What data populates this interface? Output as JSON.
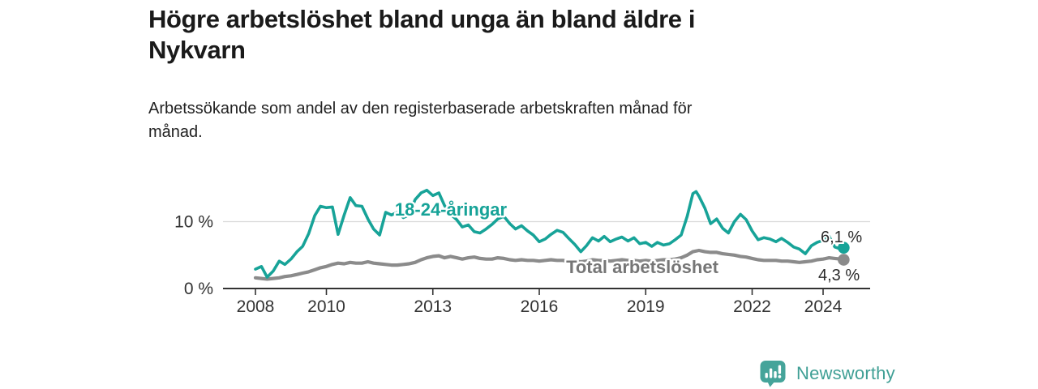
{
  "header": {
    "title_lines": [
      "Högre arbetslöshet bland unga än bland äldre i",
      "Nykvarn"
    ],
    "subtitle_lines": [
      "Arbetssökande som andel av den registerbaserade arbetskraften månad för",
      "månad."
    ]
  },
  "branding": {
    "logo_text": "Newsworthy",
    "logo_icon": "bar-chart-speech-bubble-icon",
    "logo_color": "#3f9f95"
  },
  "chart_data": {
    "type": "line",
    "unit": "%",
    "grid": "horizontal line at 10% only",
    "legend_position": "inline labels on lines",
    "xlim": [
      2007.1,
      2025.3
    ],
    "ylim": [
      0,
      16.5
    ],
    "x_ticks": [
      {
        "v": 2008,
        "label": "2008"
      },
      {
        "v": 2010,
        "label": "2010"
      },
      {
        "v": 2013,
        "label": "2013"
      },
      {
        "v": 2016,
        "label": "2016"
      },
      {
        "v": 2019,
        "label": "2019"
      },
      {
        "v": 2022,
        "label": "2022"
      },
      {
        "v": 2024,
        "label": "2024"
      }
    ],
    "y_ticks": [
      {
        "v": 0,
        "label": "0 %"
      },
      {
        "v": 10,
        "label": "10 %"
      }
    ],
    "series": [
      {
        "name": "18-24-åringar",
        "color": "#17a398",
        "end_label": "6,1 %",
        "end_value": 6.1,
        "points": [
          [
            2008.0,
            2.9
          ],
          [
            2008.17,
            3.3
          ],
          [
            2008.33,
            1.7
          ],
          [
            2008.5,
            2.6
          ],
          [
            2008.67,
            4.1
          ],
          [
            2008.83,
            3.6
          ],
          [
            2009.0,
            4.4
          ],
          [
            2009.17,
            5.5
          ],
          [
            2009.33,
            6.3
          ],
          [
            2009.5,
            8.2
          ],
          [
            2009.67,
            10.9
          ],
          [
            2009.83,
            12.3
          ],
          [
            2010.0,
            12.1
          ],
          [
            2010.17,
            12.2
          ],
          [
            2010.33,
            8.1
          ],
          [
            2010.5,
            11.0
          ],
          [
            2010.67,
            13.6
          ],
          [
            2010.83,
            12.4
          ],
          [
            2011.0,
            12.3
          ],
          [
            2011.17,
            10.4
          ],
          [
            2011.33,
            8.9
          ],
          [
            2011.5,
            8.0
          ],
          [
            2011.67,
            11.4
          ],
          [
            2011.83,
            11.0
          ],
          [
            2012.0,
            11.4
          ],
          [
            2012.17,
            10.6
          ],
          [
            2012.33,
            11.0
          ],
          [
            2012.5,
            13.3
          ],
          [
            2012.67,
            14.3
          ],
          [
            2012.83,
            14.7
          ],
          [
            2013.0,
            13.9
          ],
          [
            2013.17,
            14.3
          ],
          [
            2013.33,
            12.4
          ],
          [
            2013.5,
            11.1
          ],
          [
            2013.67,
            10.3
          ],
          [
            2013.83,
            9.2
          ],
          [
            2014.0,
            9.5
          ],
          [
            2014.17,
            8.5
          ],
          [
            2014.33,
            8.3
          ],
          [
            2014.5,
            8.9
          ],
          [
            2014.67,
            9.6
          ],
          [
            2014.83,
            10.4
          ],
          [
            2015.0,
            10.8
          ],
          [
            2015.17,
            9.7
          ],
          [
            2015.33,
            8.9
          ],
          [
            2015.5,
            9.4
          ],
          [
            2015.67,
            8.6
          ],
          [
            2015.83,
            8.0
          ],
          [
            2016.0,
            7.0
          ],
          [
            2016.17,
            7.4
          ],
          [
            2016.33,
            8.1
          ],
          [
            2016.5,
            8.7
          ],
          [
            2016.67,
            8.4
          ],
          [
            2016.83,
            7.5
          ],
          [
            2017.0,
            6.6
          ],
          [
            2017.17,
            5.5
          ],
          [
            2017.33,
            6.4
          ],
          [
            2017.5,
            7.6
          ],
          [
            2017.67,
            7.1
          ],
          [
            2017.83,
            7.8
          ],
          [
            2018.0,
            7.0
          ],
          [
            2018.17,
            7.4
          ],
          [
            2018.33,
            7.7
          ],
          [
            2018.5,
            7.1
          ],
          [
            2018.67,
            7.6
          ],
          [
            2018.83,
            6.7
          ],
          [
            2019.0,
            6.9
          ],
          [
            2019.17,
            6.3
          ],
          [
            2019.33,
            6.9
          ],
          [
            2019.5,
            6.5
          ],
          [
            2019.67,
            6.7
          ],
          [
            2019.83,
            7.3
          ],
          [
            2020.0,
            8.0
          ],
          [
            2020.17,
            10.8
          ],
          [
            2020.33,
            14.2
          ],
          [
            2020.42,
            14.5
          ],
          [
            2020.5,
            13.8
          ],
          [
            2020.67,
            12.0
          ],
          [
            2020.83,
            9.7
          ],
          [
            2021.0,
            10.4
          ],
          [
            2021.17,
            9.0
          ],
          [
            2021.33,
            8.3
          ],
          [
            2021.5,
            10.0
          ],
          [
            2021.67,
            11.1
          ],
          [
            2021.83,
            10.3
          ],
          [
            2022.0,
            8.6
          ],
          [
            2022.17,
            7.3
          ],
          [
            2022.33,
            7.6
          ],
          [
            2022.5,
            7.4
          ],
          [
            2022.67,
            7.0
          ],
          [
            2022.83,
            7.5
          ],
          [
            2023.0,
            6.9
          ],
          [
            2023.17,
            6.2
          ],
          [
            2023.33,
            5.9
          ],
          [
            2023.5,
            5.2
          ],
          [
            2023.67,
            6.4
          ],
          [
            2023.83,
            6.9
          ],
          [
            2024.0,
            7.2
          ],
          [
            2024.17,
            7.8
          ],
          [
            2024.33,
            6.2
          ],
          [
            2024.5,
            5.9
          ],
          [
            2024.58,
            6.1
          ]
        ]
      },
      {
        "name": "Total arbetslöshet",
        "color": "#8b8b8b",
        "label_color": "#767676",
        "end_label": "4,3 %",
        "end_value": 4.3,
        "points": [
          [
            2008.0,
            1.6
          ],
          [
            2008.17,
            1.5
          ],
          [
            2008.33,
            1.4
          ],
          [
            2008.5,
            1.5
          ],
          [
            2008.67,
            1.6
          ],
          [
            2008.83,
            1.8
          ],
          [
            2009.0,
            1.9
          ],
          [
            2009.17,
            2.1
          ],
          [
            2009.33,
            2.3
          ],
          [
            2009.5,
            2.5
          ],
          [
            2009.67,
            2.8
          ],
          [
            2009.83,
            3.1
          ],
          [
            2010.0,
            3.3
          ],
          [
            2010.17,
            3.6
          ],
          [
            2010.33,
            3.8
          ],
          [
            2010.5,
            3.7
          ],
          [
            2010.67,
            3.9
          ],
          [
            2010.83,
            3.8
          ],
          [
            2011.0,
            3.8
          ],
          [
            2011.17,
            4.0
          ],
          [
            2011.33,
            3.8
          ],
          [
            2011.5,
            3.7
          ],
          [
            2011.67,
            3.6
          ],
          [
            2011.83,
            3.5
          ],
          [
            2012.0,
            3.5
          ],
          [
            2012.17,
            3.6
          ],
          [
            2012.33,
            3.7
          ],
          [
            2012.5,
            3.9
          ],
          [
            2012.67,
            4.3
          ],
          [
            2012.83,
            4.6
          ],
          [
            2013.0,
            4.8
          ],
          [
            2013.17,
            4.9
          ],
          [
            2013.33,
            4.6
          ],
          [
            2013.5,
            4.8
          ],
          [
            2013.67,
            4.6
          ],
          [
            2013.83,
            4.4
          ],
          [
            2014.0,
            4.6
          ],
          [
            2014.17,
            4.7
          ],
          [
            2014.33,
            4.5
          ],
          [
            2014.5,
            4.4
          ],
          [
            2014.67,
            4.4
          ],
          [
            2014.83,
            4.6
          ],
          [
            2015.0,
            4.5
          ],
          [
            2015.17,
            4.3
          ],
          [
            2015.33,
            4.2
          ],
          [
            2015.5,
            4.3
          ],
          [
            2015.67,
            4.2
          ],
          [
            2015.83,
            4.2
          ],
          [
            2016.0,
            4.1
          ],
          [
            2016.17,
            4.2
          ],
          [
            2016.33,
            4.3
          ],
          [
            2016.5,
            4.2
          ],
          [
            2016.67,
            4.2
          ],
          [
            2016.83,
            4.0
          ],
          [
            2017.0,
            4.1
          ],
          [
            2017.17,
            4.0
          ],
          [
            2017.33,
            4.1
          ],
          [
            2017.5,
            4.3
          ],
          [
            2017.67,
            4.2
          ],
          [
            2017.83,
            4.2
          ],
          [
            2018.0,
            4.1
          ],
          [
            2018.17,
            4.2
          ],
          [
            2018.33,
            4.3
          ],
          [
            2018.5,
            4.2
          ],
          [
            2018.67,
            4.2
          ],
          [
            2018.83,
            4.1
          ],
          [
            2019.0,
            4.2
          ],
          [
            2019.17,
            4.1
          ],
          [
            2019.33,
            4.2
          ],
          [
            2019.5,
            4.3
          ],
          [
            2019.67,
            4.3
          ],
          [
            2019.83,
            4.4
          ],
          [
            2020.0,
            4.6
          ],
          [
            2020.17,
            5.0
          ],
          [
            2020.33,
            5.5
          ],
          [
            2020.5,
            5.7
          ],
          [
            2020.67,
            5.5
          ],
          [
            2020.83,
            5.4
          ],
          [
            2021.0,
            5.4
          ],
          [
            2021.17,
            5.2
          ],
          [
            2021.33,
            5.1
          ],
          [
            2021.5,
            5.0
          ],
          [
            2021.67,
            4.8
          ],
          [
            2021.83,
            4.7
          ],
          [
            2022.0,
            4.5
          ],
          [
            2022.17,
            4.3
          ],
          [
            2022.33,
            4.2
          ],
          [
            2022.5,
            4.2
          ],
          [
            2022.67,
            4.2
          ],
          [
            2022.83,
            4.1
          ],
          [
            2023.0,
            4.1
          ],
          [
            2023.17,
            4.0
          ],
          [
            2023.33,
            3.9
          ],
          [
            2023.5,
            4.0
          ],
          [
            2023.67,
            4.1
          ],
          [
            2023.83,
            4.3
          ],
          [
            2024.0,
            4.4
          ],
          [
            2024.17,
            4.6
          ],
          [
            2024.33,
            4.5
          ],
          [
            2024.5,
            4.4
          ],
          [
            2024.58,
            4.3
          ]
        ]
      }
    ]
  }
}
